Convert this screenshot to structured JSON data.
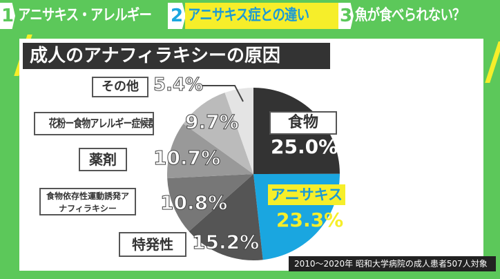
{
  "tabs": [
    {
      "number": "1",
      "label": "アニサキス・アレルギー",
      "active": false
    },
    {
      "number": "2",
      "label": "アニサキス症との違い",
      "active": true
    },
    {
      "number": "3",
      "label": "魚が食べられない？",
      "active": false
    }
  ],
  "colors": {
    "background": "#5cc85a",
    "active_tab": "#f6ee2a",
    "accent_blue": "#1aa6e0"
  },
  "source": "2010〜2020年 昭和大学病院の成人患者507人対象",
  "chart_data": {
    "type": "pie",
    "title": "成人のアナフィラキシーの原因",
    "slices": [
      {
        "label": "食物",
        "value": 25.0,
        "display": "25.0%",
        "color": "#333333"
      },
      {
        "label": "アニサキス",
        "value": 23.3,
        "display": "23.3%",
        "color": "#1aa6e0"
      },
      {
        "label": "特発性",
        "value": 15.2,
        "display": "15.2%",
        "color": "#555555"
      },
      {
        "label": "食物依存性運動誘発アナフィラキシー",
        "value": 10.8,
        "display": "10.8%",
        "color": "#777777"
      },
      {
        "label": "薬剤",
        "value": 10.7,
        "display": "10.7%",
        "color": "#999999"
      },
      {
        "label": "花粉ー食物アレルギー症候群",
        "value": 9.7,
        "display": "9.7%",
        "color": "#bbbbbb"
      },
      {
        "label": "その他",
        "value": 5.4,
        "display": "5.4%",
        "color": "#e4e4e4"
      }
    ]
  }
}
